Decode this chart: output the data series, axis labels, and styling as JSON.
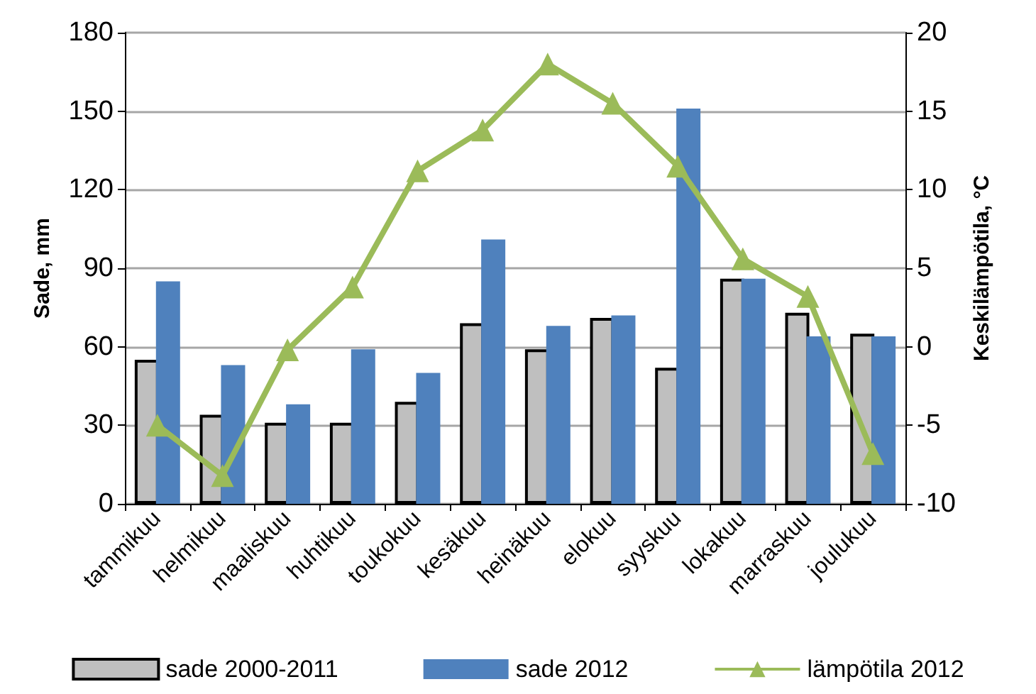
{
  "chart_data": {
    "type": "bar",
    "ylabel": "Sade, mm",
    "y2label": "Keskilämpötila, °C",
    "categories": [
      "tammikuu",
      "helmikuu",
      "maaliskuu",
      "huhtikuu",
      "toukokuu",
      "kesäkuu",
      "heinäkuu",
      "elokuu",
      "syyskuu",
      "lokakuu",
      "marraskuu",
      "joulukuu"
    ],
    "series": [
      {
        "name": "sade 2000-2011",
        "color": "#bfbfbf",
        "values": [
          55,
          34,
          31,
          31,
          39,
          69,
          59,
          71,
          52,
          86,
          73,
          65
        ]
      },
      {
        "name": "sade 2012",
        "color": "#4f81bd",
        "values": [
          85,
          53,
          38,
          59,
          50,
          101,
          68,
          72,
          151,
          86,
          64,
          64
        ]
      },
      {
        "name": "lämpötila 2012",
        "type": "line",
        "axis": "y2",
        "color": "#9bbb59",
        "marker": "triangle",
        "values": [
          -5,
          -8.2,
          -0.2,
          3.8,
          11.2,
          13.8,
          18,
          15.5,
          11.5,
          5.6,
          3.2,
          -6.8
        ]
      }
    ],
    "ylim": [
      0,
      180
    ],
    "yticks": [
      0,
      30,
      60,
      90,
      120,
      150,
      180
    ],
    "y2lim": [
      -10,
      20
    ],
    "y2ticks": [
      -10,
      -5,
      0,
      5,
      10,
      15,
      20
    ],
    "grid": "y",
    "legend": "bottom"
  }
}
